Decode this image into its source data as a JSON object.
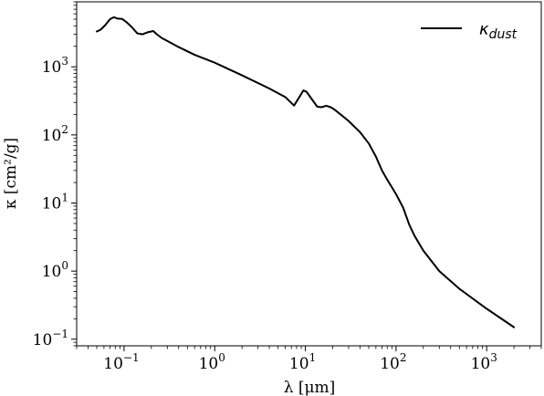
{
  "chart_data": {
    "type": "line",
    "x_scale": "log",
    "y_scale": "log",
    "xlim": [
      0.03,
      4000
    ],
    "ylim": [
      0.08,
      9000
    ],
    "xlabel": "λ [μm]",
    "ylabel": "κ [cm²/g]",
    "x_ticks": [
      {
        "value": 0.1,
        "base": "10",
        "exp": "−1"
      },
      {
        "value": 1,
        "base": "10",
        "exp": "0"
      },
      {
        "value": 10,
        "base": "10",
        "exp": "1"
      },
      {
        "value": 100,
        "base": "10",
        "exp": "2"
      },
      {
        "value": 1000,
        "base": "10",
        "exp": "3"
      }
    ],
    "y_ticks": [
      {
        "value": 0.1,
        "base": "10",
        "exp": "−1"
      },
      {
        "value": 1,
        "base": "10",
        "exp": "0"
      },
      {
        "value": 10,
        "base": "10",
        "exp": "1"
      },
      {
        "value": 100,
        "base": "10",
        "exp": "2"
      },
      {
        "value": 1000,
        "base": "10",
        "exp": "3"
      }
    ],
    "grid": false,
    "legend_position": "top-right",
    "series": [
      {
        "name": "κ_dust",
        "legend_main": "κ",
        "legend_sub": "dust",
        "color": "#000000",
        "x": [
          0.05,
          0.055,
          0.062,
          0.07,
          0.077,
          0.085,
          0.095,
          0.105,
          0.12,
          0.14,
          0.16,
          0.18,
          0.21,
          0.23,
          0.26,
          0.3,
          0.4,
          0.6,
          1.0,
          2.0,
          4.0,
          6.0,
          7.5,
          8.7,
          9.5,
          10.3,
          11.5,
          13.5,
          15,
          17,
          19,
          21,
          25,
          30,
          40,
          50,
          60,
          70,
          80,
          90,
          100,
          120,
          140,
          160,
          200,
          300,
          500,
          1000,
          2000
        ],
        "y": [
          3300,
          3500,
          4100,
          5000,
          5350,
          5100,
          5050,
          4600,
          3900,
          3100,
          3000,
          3200,
          3350,
          3000,
          2650,
          2400,
          1950,
          1500,
          1150,
          750,
          480,
          360,
          270,
          370,
          450,
          430,
          350,
          260,
          255,
          268,
          255,
          235,
          195,
          160,
          110,
          75,
          48,
          30,
          22,
          17,
          13.5,
          8.5,
          4.8,
          3.3,
          2.0,
          1.0,
          0.55,
          0.28,
          0.15
        ]
      }
    ]
  }
}
